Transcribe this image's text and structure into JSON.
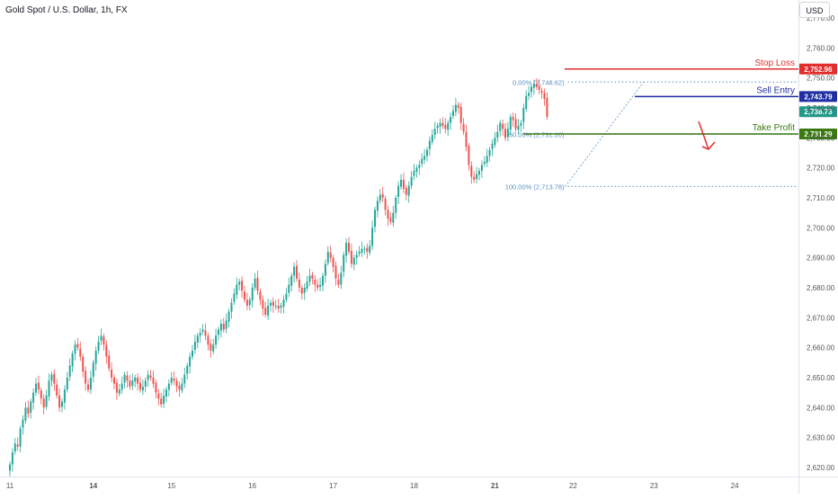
{
  "header": {
    "title": "Gold Spot / U.S. Dollar, 1h, FX",
    "currency": "USD"
  },
  "colors": {
    "up": "#26a69a",
    "down": "#ef5350",
    "stop_loss": "#e22d2d",
    "sell_entry": "#1f2fa3",
    "take_profit": "#3a7a10",
    "current_price": "#22998a",
    "fib": "#5b8fc7",
    "axis_text": "#555555"
  },
  "chart_data": {
    "type": "candlestick",
    "title": "Gold Spot / U.S. Dollar, 1h, FX",
    "ylim": [
      2617,
      2776
    ],
    "y_ticks": [
      2620,
      2630,
      2640,
      2650,
      2660,
      2670,
      2680,
      2690,
      2700,
      2710,
      2720,
      2730,
      2740,
      2750,
      2760,
      2770
    ],
    "x_labels": [
      {
        "label": "11",
        "bar": 0
      },
      {
        "label": "14",
        "bar": 32
      },
      {
        "label": "15",
        "bar": 62
      },
      {
        "label": "16",
        "bar": 93
      },
      {
        "label": "17",
        "bar": 124
      },
      {
        "label": "18",
        "bar": 155
      },
      {
        "label": "21",
        "bar": 186
      },
      {
        "label": "22",
        "bar": 216
      },
      {
        "label": "23",
        "bar": 247
      },
      {
        "label": "24",
        "bar": 278
      }
    ],
    "closes": [
      2621,
      2625,
      2628,
      2627,
      2633,
      2636,
      2640,
      2638,
      2642,
      2645,
      2648,
      2646,
      2643,
      2640,
      2644,
      2649,
      2651,
      2648,
      2644,
      2640,
      2642,
      2646,
      2650,
      2654,
      2658,
      2661,
      2660,
      2657,
      2652,
      2648,
      2646,
      2650,
      2655,
      2659,
      2662,
      2664,
      2661,
      2657,
      2653,
      2650,
      2648,
      2645,
      2646,
      2648,
      2651,
      2649,
      2647,
      2649,
      2650,
      2648,
      2646,
      2647,
      2649,
      2651,
      2650,
      2648,
      2645,
      2643,
      2641,
      2644,
      2646,
      2648,
      2650,
      2649,
      2647,
      2646,
      2648,
      2651,
      2654,
      2657,
      2659,
      2662,
      2664,
      2665,
      2666,
      2664,
      2661,
      2659,
      2661,
      2664,
      2666,
      2668,
      2666,
      2669,
      2672,
      2675,
      2678,
      2681,
      2682,
      2679,
      2676,
      2674,
      2676,
      2680,
      2683,
      2679,
      2676,
      2673,
      2671,
      2674,
      2675,
      2674,
      2674,
      2673,
      2674,
      2676,
      2678,
      2681,
      2684,
      2687,
      2683,
      2680,
      2678,
      2680,
      2682,
      2684,
      2683,
      2681,
      2680,
      2681,
      2684,
      2688,
      2692,
      2690,
      2687,
      2683,
      2681,
      2685,
      2691,
      2695,
      2692,
      2688,
      2690,
      2691,
      2692,
      2693,
      2693,
      2692,
      2694,
      2700,
      2706,
      2709,
      2711,
      2710,
      2706,
      2703,
      2702,
      2705,
      2710,
      2714,
      2716,
      2713,
      2711,
      2714,
      2717,
      2719,
      2720,
      2721,
      2723,
      2724,
      2726,
      2729,
      2731,
      2733,
      2734,
      2735,
      2734,
      2733,
      2735,
      2737,
      2739,
      2741,
      2740,
      2735,
      2732,
      2727,
      2721,
      2717,
      2716,
      2718,
      2719,
      2721,
      2722,
      2724,
      2726,
      2728,
      2730,
      2732,
      2735,
      2733,
      2730,
      2733,
      2737,
      2736,
      2733,
      2734,
      2735,
      2740,
      2744,
      2745,
      2747,
      2748,
      2747,
      2746,
      2745,
      2743,
      2737
    ],
    "stop_loss": {
      "label": "Stop Loss",
      "value": 2752.96,
      "tag": "2,752.96"
    },
    "sell_entry": {
      "label": "Sell Entry",
      "value": 2743.79,
      "tag": "2,743.79"
    },
    "take_profit": {
      "label": "Take Profit",
      "value": 2731.29,
      "tag": "2,731.29"
    },
    "current_price": {
      "value": 2738.73,
      "tag": "2,738.73"
    },
    "fibonacci": [
      {
        "label": "0.00% (2,748.62)",
        "value": 2748.62
      },
      {
        "label": "50.00% (2,731.20)",
        "value": 2731.2
      },
      {
        "label": "100.00% (2,713.78)",
        "value": 2713.78
      }
    ]
  }
}
